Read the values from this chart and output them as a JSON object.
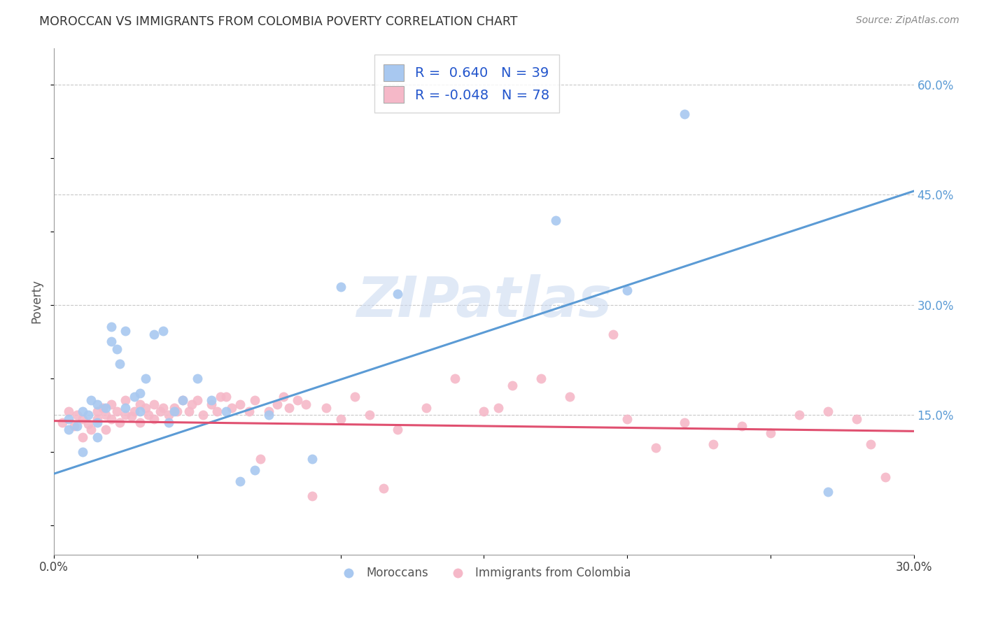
{
  "title": "MOROCCAN VS IMMIGRANTS FROM COLOMBIA POVERTY CORRELATION CHART",
  "source": "Source: ZipAtlas.com",
  "ylabel": "Poverty",
  "xlim": [
    0.0,
    0.3
  ],
  "ylim": [
    -0.04,
    0.65
  ],
  "x_ticks": [
    0.0,
    0.05,
    0.1,
    0.15,
    0.2,
    0.25,
    0.3
  ],
  "x_tick_labels": [
    "0.0%",
    "",
    "",
    "",
    "",
    "",
    "30.0%"
  ],
  "y_ticks_right": [
    0.15,
    0.3,
    0.45,
    0.6
  ],
  "y_tick_labels_right": [
    "15.0%",
    "30.0%",
    "45.0%",
    "60.0%"
  ],
  "blue_color": "#a8c8f0",
  "blue_line_color": "#5b9bd5",
  "pink_color": "#f5b8c8",
  "pink_line_color": "#e05070",
  "blue_R": 0.64,
  "blue_N": 39,
  "pink_R": -0.048,
  "pink_N": 78,
  "background_color": "#ffffff",
  "grid_color": "#c8c8c8",
  "watermark": "ZIPatlas",
  "watermark_color": "#c8d8f0",
  "blue_trend_x": [
    0.0,
    0.3
  ],
  "blue_trend_y": [
    0.07,
    0.455
  ],
  "pink_trend_x": [
    0.0,
    0.3
  ],
  "pink_trend_y": [
    0.142,
    0.128
  ],
  "blue_scatter_x": [
    0.005,
    0.008,
    0.01,
    0.01,
    0.012,
    0.013,
    0.015,
    0.015,
    0.015,
    0.018,
    0.02,
    0.02,
    0.022,
    0.023,
    0.025,
    0.025,
    0.028,
    0.03,
    0.03,
    0.032,
    0.035,
    0.038,
    0.04,
    0.042,
    0.045,
    0.05,
    0.055,
    0.06,
    0.065,
    0.07,
    0.075,
    0.09,
    0.1,
    0.12,
    0.175,
    0.2,
    0.22,
    0.27,
    0.005
  ],
  "blue_scatter_y": [
    0.145,
    0.135,
    0.155,
    0.1,
    0.15,
    0.17,
    0.14,
    0.165,
    0.12,
    0.16,
    0.25,
    0.27,
    0.24,
    0.22,
    0.265,
    0.16,
    0.175,
    0.18,
    0.155,
    0.2,
    0.26,
    0.265,
    0.14,
    0.155,
    0.17,
    0.2,
    0.17,
    0.155,
    0.06,
    0.075,
    0.15,
    0.09,
    0.325,
    0.315,
    0.415,
    0.32,
    0.56,
    0.045,
    0.13
  ],
  "pink_scatter_x": [
    0.003,
    0.005,
    0.007,
    0.008,
    0.01,
    0.01,
    0.012,
    0.013,
    0.015,
    0.015,
    0.017,
    0.018,
    0.018,
    0.02,
    0.02,
    0.022,
    0.023,
    0.025,
    0.025,
    0.027,
    0.028,
    0.03,
    0.03,
    0.032,
    0.033,
    0.035,
    0.035,
    0.037,
    0.038,
    0.04,
    0.042,
    0.043,
    0.045,
    0.047,
    0.048,
    0.05,
    0.052,
    0.055,
    0.057,
    0.058,
    0.06,
    0.062,
    0.065,
    0.068,
    0.07,
    0.072,
    0.075,
    0.078,
    0.08,
    0.082,
    0.085,
    0.088,
    0.09,
    0.095,
    0.1,
    0.105,
    0.11,
    0.115,
    0.12,
    0.13,
    0.14,
    0.15,
    0.155,
    0.16,
    0.17,
    0.18,
    0.195,
    0.2,
    0.21,
    0.22,
    0.23,
    0.24,
    0.25,
    0.26,
    0.27,
    0.28,
    0.285,
    0.29
  ],
  "pink_scatter_y": [
    0.14,
    0.155,
    0.135,
    0.15,
    0.12,
    0.145,
    0.138,
    0.13,
    0.155,
    0.145,
    0.16,
    0.15,
    0.13,
    0.165,
    0.145,
    0.155,
    0.14,
    0.17,
    0.15,
    0.148,
    0.155,
    0.165,
    0.14,
    0.16,
    0.15,
    0.165,
    0.145,
    0.155,
    0.16,
    0.15,
    0.16,
    0.155,
    0.17,
    0.155,
    0.165,
    0.17,
    0.15,
    0.165,
    0.155,
    0.175,
    0.175,
    0.16,
    0.165,
    0.155,
    0.17,
    0.09,
    0.155,
    0.165,
    0.175,
    0.16,
    0.17,
    0.165,
    0.04,
    0.16,
    0.145,
    0.175,
    0.15,
    0.05,
    0.13,
    0.16,
    0.2,
    0.155,
    0.16,
    0.19,
    0.2,
    0.175,
    0.26,
    0.145,
    0.105,
    0.14,
    0.11,
    0.135,
    0.125,
    0.15,
    0.155,
    0.145,
    0.11,
    0.065
  ]
}
